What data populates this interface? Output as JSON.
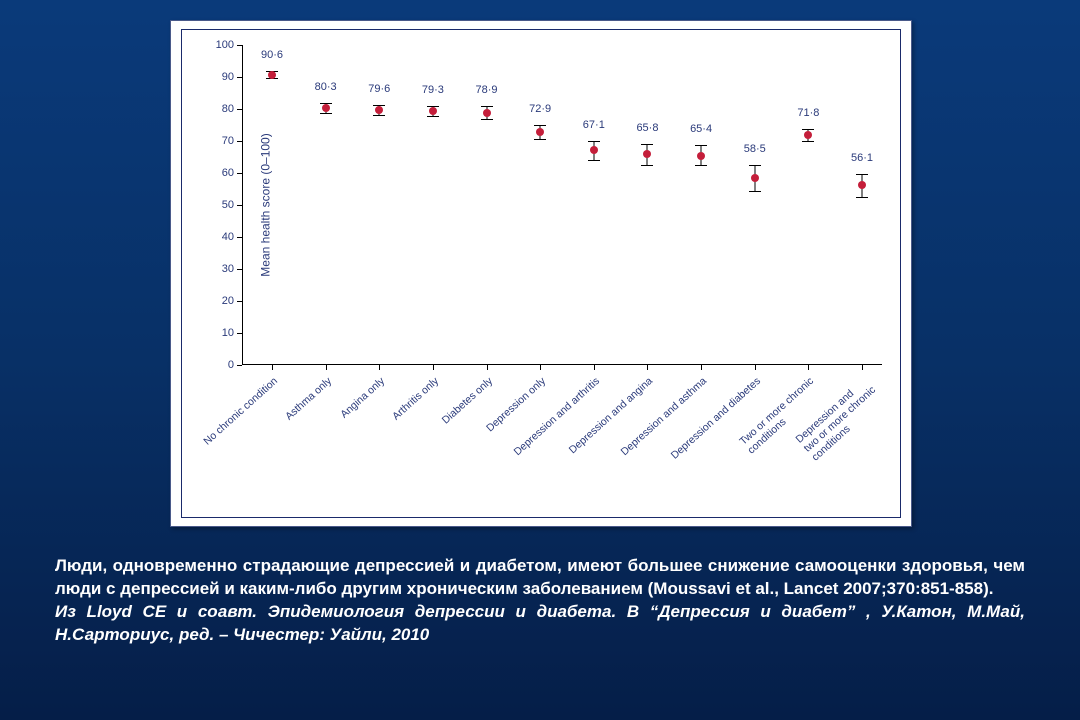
{
  "chart": {
    "type": "point-with-error",
    "ylabel": "Mean health score (0–100)",
    "ylim": [
      0,
      100
    ],
    "ytick_step": 10,
    "label_fontsize": 12,
    "tick_fontsize": 11,
    "axis_color": "#000000",
    "text_color": "#2a3a7a",
    "background_color": "#ffffff",
    "marker_color": "#c41e3a",
    "marker_size": 8,
    "error_bar_color": "#000000",
    "points": [
      {
        "label": "No chronic condition",
        "value": 90.6,
        "display": "90·6",
        "err_up": 1.2,
        "err_down": 1.0
      },
      {
        "label": "Asthma only",
        "value": 80.3,
        "display": "80·3",
        "err_up": 1.5,
        "err_down": 1.5
      },
      {
        "label": "Angina only",
        "value": 79.6,
        "display": "79·6",
        "err_up": 1.6,
        "err_down": 1.6
      },
      {
        "label": "Arthritis only",
        "value": 79.3,
        "display": "79·3",
        "err_up": 1.5,
        "err_down": 1.5
      },
      {
        "label": "Diabetes only",
        "value": 78.9,
        "display": "78·9",
        "err_up": 2.0,
        "err_down": 2.0
      },
      {
        "label": "Depression only",
        "value": 72.9,
        "display": "72·9",
        "err_up": 2.2,
        "err_down": 2.2
      },
      {
        "label": "Depression and arthritis",
        "value": 67.1,
        "display": "67·1",
        "err_up": 3.0,
        "err_down": 3.0
      },
      {
        "label": "Depression and angina",
        "value": 65.8,
        "display": "65·8",
        "err_up": 3.2,
        "err_down": 3.2
      },
      {
        "label": "Depression and asthma",
        "value": 65.4,
        "display": "65·4",
        "err_up": 3.5,
        "err_down": 3.0
      },
      {
        "label": "Depression and diabetes",
        "value": 58.5,
        "display": "58·5",
        "err_up": 4.0,
        "err_down": 4.0
      },
      {
        "label": "Two or more chronic\nconditions",
        "value": 71.8,
        "display": "71·8",
        "err_up": 1.8,
        "err_down": 1.8
      },
      {
        "label": "Depression and\ntwo or more chronic\nconditions",
        "value": 56.1,
        "display": "56·1",
        "err_up": 3.5,
        "err_down": 3.5
      }
    ]
  },
  "caption": {
    "main": "Люди, одновременно страдающие депрессией и диабетом, имеют большее снижение самооценки здоровья, чем люди с депрессией и каким-либо другим хроническим заболеванием (Moussavi et al., Lancet 2007;370:851-858).",
    "source": "Из Lloyd CE и соавт. Эпидемиология депрессии и диабета. В “Депрессия и диабет” , У.Катон, М.Май, Н.Сарториус, ред. – Чичестер: Уайли, 2010"
  },
  "slide_bg_gradient": [
    "#0a3a7a",
    "#083066",
    "#051e48"
  ]
}
